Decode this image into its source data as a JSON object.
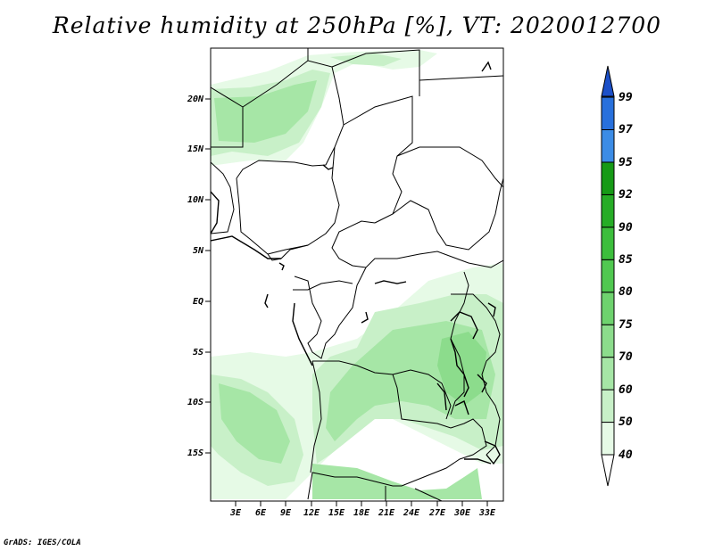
{
  "title": "Relative humidity at 250hPa [%], VT: 2020012700",
  "credit": "GrADS: IGES/COLA",
  "map": {
    "lat_ticks": [
      "20N",
      "15N",
      "10N",
      "5N",
      "EQ",
      "5S",
      "10S",
      "15S"
    ],
    "lon_ticks": [
      "3E",
      "6E",
      "9E",
      "12E",
      "15E",
      "18E",
      "21E",
      "24E",
      "27E",
      "30E",
      "33E"
    ]
  },
  "colorbar": {
    "levels": [
      "40",
      "50",
      "60",
      "70",
      "75",
      "80",
      "85",
      "90",
      "92",
      "95",
      "97",
      "99"
    ],
    "colors": [
      "#e6fae6",
      "#c8f0c8",
      "#a6e6a6",
      "#8cdc8c",
      "#6ed26e",
      "#50c850",
      "#3cbe3c",
      "#26ac26",
      "#169a16",
      "#3c8ce6",
      "#2870dc",
      "#1c50c8"
    ]
  },
  "fill_colors": {
    "c40": "#e6fae6",
    "c50": "#c8f0c8",
    "c60": "#a6e6a6",
    "c70": "#8cdc8c"
  }
}
